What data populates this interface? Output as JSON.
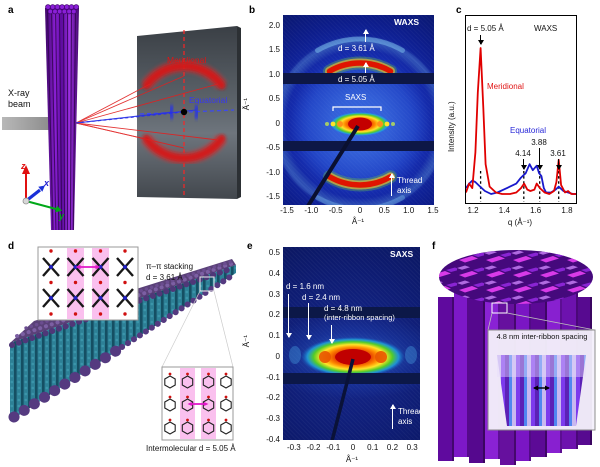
{
  "figure_type": "scientific-paper-figure",
  "panels": {
    "a": {
      "label": "a",
      "beam_line1": "X-ray",
      "beam_line2": "beam",
      "meridional": "Meridional",
      "equatorial": "Equatorial",
      "axis_x": "x",
      "axis_y": "y",
      "axis_z": "z"
    },
    "b": {
      "label": "b",
      "technique": "WAXS",
      "d_361": "d = 3.61 Å",
      "d_505": "d = 5.05 Å",
      "saxs": "SAXS",
      "thread_line1": "Thread",
      "thread_line2": "axis",
      "x_axis": "Å⁻¹",
      "y_axis": "Å⁻¹",
      "x_ticks": [
        "-1.5",
        "-1.0",
        "-0.5",
        "0",
        "0.5",
        "1.0",
        "1.5"
      ],
      "y_ticks": [
        "2.0",
        "1.5",
        "1.0",
        "0.5",
        "0",
        "-0.5",
        "-1.0",
        "-1.5"
      ]
    },
    "c": {
      "label": "c",
      "technique": "WAXS",
      "d_label": "d = 5.05 Å",
      "meridional": "Meridional",
      "equatorial": "Equatorial",
      "peak_414": "4.14",
      "peak_388": "3.88",
      "peak_361": "3.61",
      "xlabel": "q (Å⁻¹)",
      "ylabel": "Intensity (a.u.)",
      "x_ticks": [
        "1.2",
        "1.4",
        "1.6",
        "1.8"
      ]
    },
    "d": {
      "label": "d",
      "pi_line1": "π–π stacking",
      "pi_line2": "d = 3.61 Å",
      "intermolecular": "Intermolecular d = 5.05 Å"
    },
    "e": {
      "label": "e",
      "technique": "SAXS",
      "d_16": "d = 1.6 nm",
      "d_24": "d = 2.4 nm",
      "d_48": "d = 4.8 nm",
      "d_48b": "(inter-ribbon spacing)",
      "thread_line1": "Thread",
      "thread_line2": "axis",
      "x_axis": "Å⁻¹",
      "y_axis": "Å⁻¹",
      "x_ticks": [
        "-0.3",
        "-0.2",
        "-0.1",
        "0",
        "0.1",
        "0.2",
        "0.3"
      ],
      "y_ticks": [
        "0.5",
        "0.4",
        "0.3",
        "0.2",
        "0.1",
        "0",
        "-0.1",
        "-0.2",
        "-0.3",
        "-0.4"
      ]
    },
    "f": {
      "label": "f",
      "inset_title": "4.8 nm inter-ribbon spacing"
    }
  },
  "chart_data": {
    "type": "line",
    "title": "WAXS",
    "xlabel": "q (Å⁻¹)",
    "ylabel": "Intensity (a.u.)",
    "xlim": [
      1.15,
      1.85
    ],
    "ylim": [
      0,
      1.05
    ],
    "x_ticks": [
      1.2,
      1.4,
      1.6,
      1.8
    ],
    "grid": false,
    "legend_position": "inline-annotations",
    "annotations": {
      "main_peak_d": "d = 5.05 Å",
      "main_peak_q": 1.243,
      "equatorial_peaks_d": [
        "4.14",
        "3.88",
        "3.61"
      ],
      "equatorial_peaks_q": [
        1.518,
        1.619,
        1.74
      ]
    },
    "dashed_q": [
      1.243,
      1.518,
      1.619,
      1.74
    ],
    "series": [
      {
        "name": "Meridional",
        "color": "#e00000",
        "x": [
          1.15,
          1.17,
          1.19,
          1.21,
          1.225,
          1.243,
          1.26,
          1.275,
          1.3,
          1.34,
          1.38,
          1.43,
          1.47,
          1.5,
          1.52,
          1.54,
          1.56,
          1.585,
          1.6,
          1.62,
          1.65,
          1.68,
          1.71,
          1.725,
          1.74,
          1.755,
          1.78,
          1.8,
          1.82,
          1.85
        ],
        "y": [
          0.03,
          0.09,
          0.06,
          0.3,
          0.7,
          1.0,
          0.6,
          0.22,
          0.07,
          0.03,
          0.02,
          0.02,
          0.03,
          0.06,
          0.09,
          0.05,
          0.04,
          0.05,
          0.09,
          0.06,
          0.03,
          0.02,
          0.04,
          0.1,
          0.25,
          0.08,
          0.03,
          0.04,
          0.02,
          0.02
        ]
      },
      {
        "name": "Equatorial",
        "color": "#1818cc",
        "x": [
          1.15,
          1.17,
          1.19,
          1.21,
          1.24,
          1.27,
          1.31,
          1.35,
          1.39,
          1.43,
          1.47,
          1.5,
          1.53,
          1.555,
          1.575,
          1.6,
          1.615,
          1.63,
          1.645,
          1.66,
          1.69,
          1.72,
          1.74,
          1.77,
          1.8,
          1.83,
          1.85
        ],
        "y": [
          0.06,
          0.09,
          0.11,
          0.1,
          0.07,
          0.04,
          0.02,
          0.03,
          0.05,
          0.07,
          0.09,
          0.13,
          0.16,
          0.22,
          0.18,
          0.21,
          0.16,
          0.14,
          0.06,
          0.03,
          0.03,
          0.05,
          0.07,
          0.04,
          0.03,
          0.02,
          0.02
        ]
      }
    ]
  }
}
